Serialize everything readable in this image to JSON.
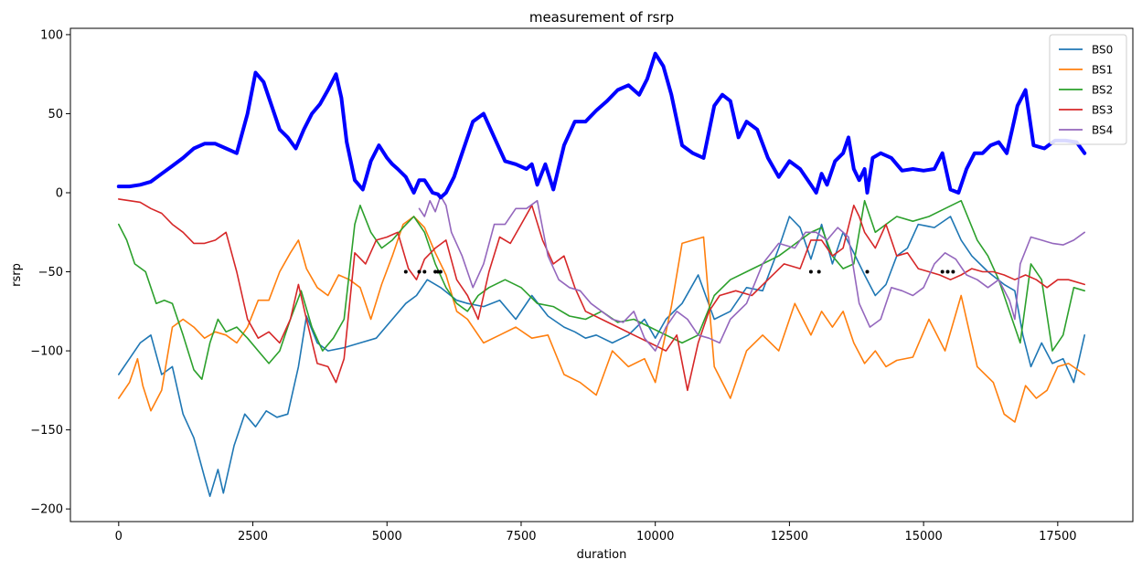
{
  "chart_data": {
    "type": "line",
    "title": "measurement of rsrp",
    "xlabel": "duration",
    "ylabel": "rsrp",
    "xlim": [
      -900,
      18900
    ],
    "ylim": [
      -208,
      104
    ],
    "xticks": [
      0,
      2500,
      5000,
      7500,
      10000,
      12500,
      15000,
      17500
    ],
    "yticks": [
      -200,
      -150,
      -100,
      -50,
      0,
      50,
      100
    ],
    "grid": false,
    "legend": "top-right",
    "series": [
      {
        "name": "BS0",
        "color": "#1f77b4",
        "x": [
          0,
          200,
          400,
          600,
          800,
          1000,
          1200,
          1400,
          1600,
          1700,
          1850,
          1950,
          2150,
          2350,
          2550,
          2750,
          2950,
          3150,
          3350,
          3500,
          3700,
          3900,
          4200,
          4500,
          4800,
          5100,
          5350,
          5550,
          5750,
          6000,
          6300,
          6500,
          6800,
          7100,
          7400,
          7700,
          8000,
          8300,
          8500,
          8700,
          8900,
          9200,
          9500,
          9800,
          10000,
          10200,
          10500,
          10800,
          11100,
          11400,
          11700,
          12000,
          12300,
          12500,
          12700,
          12900,
          13100,
          13300,
          13500,
          13700,
          13900,
          14100,
          14300,
          14500,
          14700,
          14900,
          15200,
          15500,
          15700,
          15900,
          16200,
          16500,
          16700,
          16850,
          17000,
          17200,
          17400,
          17600,
          17800,
          18000
        ],
        "values": [
          -115,
          -105,
          -95,
          -90,
          -115,
          -110,
          -140,
          -155,
          -180,
          -192,
          -175,
          -190,
          -160,
          -140,
          -148,
          -138,
          -142,
          -140,
          -110,
          -78,
          -95,
          -100,
          -98,
          -95,
          -92,
          -80,
          -70,
          -65,
          -55,
          -60,
          -68,
          -70,
          -72,
          -68,
          -80,
          -65,
          -78,
          -85,
          -88,
          -92,
          -90,
          -95,
          -90,
          -80,
          -92,
          -80,
          -70,
          -52,
          -80,
          -75,
          -60,
          -62,
          -35,
          -15,
          -22,
          -42,
          -20,
          -45,
          -25,
          -38,
          -52,
          -65,
          -58,
          -40,
          -35,
          -20,
          -22,
          -15,
          -30,
          -40,
          -50,
          -58,
          -62,
          -90,
          -110,
          -95,
          -108,
          -105,
          -120,
          -90
        ]
      },
      {
        "name": "BS1",
        "color": "#ff7f0e",
        "x": [
          0,
          200,
          350,
          450,
          600,
          800,
          1000,
          1200,
          1400,
          1600,
          1800,
          2000,
          2200,
          2400,
          2600,
          2800,
          3000,
          3200,
          3350,
          3500,
          3700,
          3900,
          4100,
          4300,
          4500,
          4700,
          4900,
          5100,
          5300,
          5500,
          5700,
          5900,
          6100,
          6300,
          6500,
          6800,
          7100,
          7400,
          7700,
          8000,
          8300,
          8600,
          8900,
          9200,
          9500,
          9800,
          10000,
          10300,
          10500,
          10700,
          10900,
          11100,
          11400,
          11700,
          12000,
          12300,
          12600,
          12900,
          13100,
          13300,
          13500,
          13700,
          13900,
          14100,
          14300,
          14500,
          14800,
          15100,
          15400,
          15700,
          16000,
          16300,
          16500,
          16700,
          16900,
          17100,
          17300,
          17500,
          17700,
          18000
        ],
        "values": [
          -130,
          -120,
          -105,
          -122,
          -138,
          -125,
          -85,
          -80,
          -85,
          -92,
          -88,
          -90,
          -95,
          -85,
          -68,
          -68,
          -50,
          -38,
          -30,
          -48,
          -60,
          -65,
          -52,
          -55,
          -60,
          -80,
          -58,
          -40,
          -20,
          -15,
          -22,
          -38,
          -52,
          -75,
          -80,
          -95,
          -90,
          -85,
          -92,
          -90,
          -115,
          -120,
          -128,
          -100,
          -110,
          -105,
          -120,
          -72,
          -32,
          -30,
          -28,
          -110,
          -130,
          -100,
          -90,
          -100,
          -70,
          -90,
          -75,
          -85,
          -75,
          -95,
          -108,
          -100,
          -110,
          -106,
          -104,
          -80,
          -100,
          -65,
          -110,
          -120,
          -140,
          -145,
          -122,
          -130,
          -125,
          -110,
          -108,
          -115
        ]
      },
      {
        "name": "BS2",
        "color": "#2ca02c",
        "x": [
          0,
          150,
          300,
          500,
          700,
          850,
          1000,
          1200,
          1400,
          1550,
          1700,
          1850,
          2000,
          2200,
          2400,
          2600,
          2800,
          3000,
          3200,
          3400,
          3600,
          3800,
          4000,
          4200,
          4400,
          4500,
          4700,
          4900,
          5100,
          5300,
          5500,
          5700,
          5900,
          6100,
          6300,
          6500,
          6700,
          6900,
          7200,
          7500,
          7800,
          8100,
          8400,
          8700,
          9000,
          9300,
          9600,
          9900,
          10200,
          10500,
          10800,
          11100,
          11400,
          11700,
          12000,
          12300,
          12500,
          12700,
          12900,
          13100,
          13300,
          13500,
          13700,
          13900,
          14100,
          14300,
          14500,
          14800,
          15100,
          15400,
          15700,
          16000,
          16200,
          16400,
          16600,
          16800,
          17000,
          17200,
          17400,
          17600,
          17800,
          18000
        ],
        "values": [
          -20,
          -30,
          -45,
          -50,
          -70,
          -68,
          -70,
          -90,
          -112,
          -118,
          -95,
          -80,
          -88,
          -85,
          -92,
          -100,
          -108,
          -100,
          -80,
          -62,
          -85,
          -100,
          -92,
          -80,
          -20,
          -8,
          -25,
          -35,
          -30,
          -22,
          -15,
          -25,
          -45,
          -60,
          -70,
          -75,
          -65,
          -60,
          -55,
          -60,
          -70,
          -72,
          -78,
          -80,
          -75,
          -82,
          -80,
          -85,
          -90,
          -95,
          -90,
          -65,
          -55,
          -50,
          -45,
          -40,
          -35,
          -30,
          -25,
          -22,
          -40,
          -48,
          -45,
          -5,
          -25,
          -20,
          -15,
          -18,
          -15,
          -10,
          -5,
          -30,
          -40,
          -55,
          -75,
          -95,
          -45,
          -55,
          -100,
          -90,
          -60,
          -62
        ]
      },
      {
        "name": "BS3",
        "color": "#d62728",
        "x": [
          0,
          200,
          400,
          600,
          800,
          1000,
          1200,
          1400,
          1600,
          1800,
          2000,
          2200,
          2400,
          2600,
          2800,
          3000,
          3200,
          3350,
          3500,
          3700,
          3900,
          4050,
          4200,
          4400,
          4600,
          4800,
          5000,
          5200,
          5400,
          5550,
          5700,
          5900,
          6100,
          6300,
          6500,
          6700,
          6900,
          7100,
          7300,
          7500,
          7700,
          7900,
          8100,
          8300,
          8500,
          8700,
          9000,
          9300,
          9600,
          9900,
          10200,
          10400,
          10600,
          10800,
          11000,
          11200,
          11500,
          11800,
          12100,
          12400,
          12700,
          12900,
          13100,
          13300,
          13500,
          13700,
          13800,
          13900,
          14100,
          14300,
          14500,
          14700,
          14900,
          15100,
          15300,
          15500,
          15700,
          15900,
          16100,
          16300,
          16500,
          16700,
          16900,
          17100,
          17300,
          17500,
          17700,
          18000
        ],
        "values": [
          -4,
          -5,
          -6,
          -10,
          -13,
          -20,
          -25,
          -32,
          -32,
          -30,
          -25,
          -50,
          -80,
          -92,
          -88,
          -95,
          -80,
          -58,
          -80,
          -108,
          -110,
          -120,
          -105,
          -38,
          -45,
          -30,
          -28,
          -25,
          -48,
          -55,
          -42,
          -35,
          -30,
          -55,
          -65,
          -80,
          -50,
          -28,
          -32,
          -20,
          -8,
          -30,
          -45,
          -40,
          -60,
          -75,
          -80,
          -85,
          -90,
          -95,
          -100,
          -90,
          -125,
          -95,
          -75,
          -65,
          -62,
          -65,
          -55,
          -45,
          -48,
          -30,
          -30,
          -40,
          -35,
          -8,
          -15,
          -25,
          -35,
          -20,
          -40,
          -38,
          -48,
          -50,
          -52,
          -55,
          -52,
          -48,
          -50,
          -50,
          -52,
          -55,
          -52,
          -55,
          -60,
          -55,
          -55,
          -58
        ]
      },
      {
        "name": "BS4",
        "color": "#9467bd",
        "x": [
          5600,
          5700,
          5800,
          5900,
          6000,
          6100,
          6200,
          6400,
          6600,
          6800,
          7000,
          7200,
          7400,
          7600,
          7800,
          8000,
          8200,
          8400,
          8600,
          8800,
          9000,
          9200,
          9400,
          9600,
          9800,
          10000,
          10200,
          10400,
          10600,
          10800,
          11000,
          11200,
          11400,
          11700,
          12000,
          12300,
          12600,
          12800,
          13000,
          13200,
          13400,
          13600,
          13800,
          14000,
          14200,
          14400,
          14600,
          14800,
          15000,
          15200,
          15400,
          15600,
          15800,
          16000,
          16200,
          16400,
          16600,
          16700,
          16800,
          17000,
          17200,
          17400,
          17600,
          17800,
          18000
        ],
        "values": [
          -10,
          -15,
          -5,
          -12,
          -2,
          -8,
          -25,
          -40,
          -60,
          -45,
          -20,
          -20,
          -10,
          -10,
          -5,
          -40,
          -55,
          -60,
          -62,
          -70,
          -75,
          -80,
          -82,
          -75,
          -92,
          -100,
          -85,
          -75,
          -80,
          -90,
          -92,
          -95,
          -80,
          -70,
          -45,
          -32,
          -35,
          -25,
          -25,
          -30,
          -22,
          -28,
          -70,
          -85,
          -80,
          -60,
          -62,
          -65,
          -60,
          -45,
          -38,
          -42,
          -52,
          -55,
          -60,
          -55,
          -68,
          -80,
          -45,
          -28,
          -30,
          -32,
          -33,
          -30,
          -25
        ]
      },
      {
        "name": "",
        "color": "#0000ff",
        "x": [
          0,
          200,
          400,
          600,
          800,
          1000,
          1200,
          1400,
          1600,
          1800,
          2000,
          2200,
          2400,
          2550,
          2700,
          2850,
          3000,
          3150,
          3300,
          3450,
          3600,
          3750,
          3900,
          4050,
          4150,
          4250,
          4400,
          4550,
          4700,
          4850,
          5000,
          5100,
          5200,
          5350,
          5500,
          5600,
          5700,
          5850,
          5950,
          6000,
          6100,
          6250,
          6400,
          6600,
          6800,
          7000,
          7200,
          7400,
          7600,
          7700,
          7800,
          7950,
          8100,
          8300,
          8500,
          8700,
          8900,
          9100,
          9300,
          9500,
          9700,
          9850,
          10000,
          10150,
          10300,
          10500,
          10700,
          10900,
          11100,
          11250,
          11400,
          11550,
          11700,
          11900,
          12100,
          12300,
          12500,
          12700,
          12900,
          13000,
          13100,
          13200,
          13350,
          13500,
          13600,
          13700,
          13800,
          13900,
          13950,
          14050,
          14200,
          14400,
          14600,
          14800,
          15000,
          15200,
          15350,
          15500,
          15650,
          15800,
          15950,
          16100,
          16250,
          16400,
          16550,
          16650,
          16750,
          16900,
          17050,
          17250,
          17450,
          17650,
          17850,
          18000
        ],
        "values": [
          4,
          4,
          5,
          7,
          12,
          17,
          22,
          28,
          31,
          31,
          28,
          25,
          50,
          76,
          70,
          55,
          40,
          35,
          28,
          40,
          50,
          56,
          65,
          75,
          60,
          32,
          8,
          2,
          20,
          30,
          22,
          18,
          15,
          10,
          0,
          8,
          8,
          0,
          -1,
          -3,
          0,
          10,
          25,
          45,
          50,
          35,
          20,
          18,
          15,
          18,
          5,
          18,
          2,
          30,
          45,
          45,
          52,
          58,
          65,
          68,
          62,
          72,
          88,
          80,
          62,
          30,
          25,
          22,
          55,
          62,
          58,
          35,
          45,
          40,
          22,
          10,
          20,
          15,
          5,
          0,
          12,
          5,
          20,
          25,
          35,
          15,
          8,
          15,
          0,
          22,
          25,
          22,
          14,
          15,
          14,
          15,
          25,
          2,
          0,
          15,
          25,
          25,
          30,
          32,
          25,
          40,
          55,
          65,
          30,
          28,
          33,
          33,
          32,
          25
        ]
      }
    ],
    "scatter": {
      "color": "#000000",
      "x": [
        5350,
        5600,
        5700,
        5900,
        5950,
        6000,
        12900,
        13050,
        13950,
        15350,
        15450,
        15550
      ],
      "values": [
        -50,
        -50,
        -50,
        -50,
        -50,
        -50,
        -50,
        -50,
        -50,
        -50,
        -50,
        -50
      ]
    }
  }
}
